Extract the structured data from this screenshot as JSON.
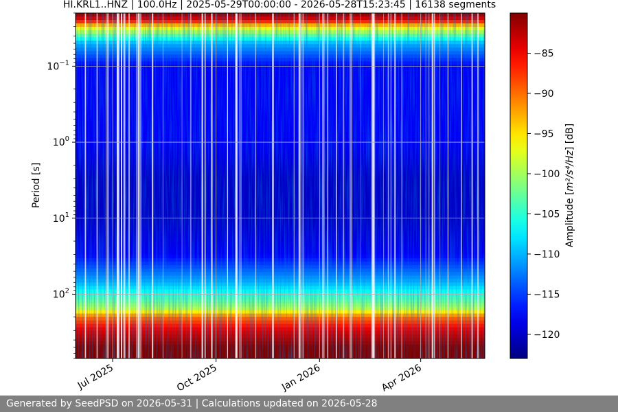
{
  "chart_data": {
    "type": "heatmap",
    "title": "HI.KRL1..HNZ | 100.0Hz | 2025-05-29T00:00:00 - 2026-05-28T15:23:45 | 16138 segments",
    "ylabel": "Period [s]",
    "y_scale": "log",
    "y_inverted": true,
    "ylim": [
      0.02,
      700
    ],
    "y_ticks": [
      {
        "value": 0.1,
        "base": "10",
        "exp": "−1"
      },
      {
        "value": 1,
        "base": "10",
        "exp": "0"
      },
      {
        "value": 10,
        "base": "10",
        "exp": "1"
      },
      {
        "value": 100,
        "base": "10",
        "exp": "2"
      }
    ],
    "x_range": [
      "2025-05-29",
      "2026-05-28"
    ],
    "x_ticks": [
      {
        "date": "2025-07-01",
        "label": "Jul 2025"
      },
      {
        "date": "2025-10-01",
        "label": "Oct 2025"
      },
      {
        "date": "2026-01-01",
        "label": "Jan 2026"
      },
      {
        "date": "2026-04-01",
        "label": "Apr 2026"
      }
    ],
    "grid": true,
    "colormap": "jet",
    "colorbar": {
      "label_prefix": "Amplitude [",
      "label_units": "m²/s⁴/Hz",
      "label_suffix": "] [dB]",
      "range": [
        -123,
        -80
      ],
      "ticks": [
        {
          "value": -85,
          "label": "−85"
        },
        {
          "value": -90,
          "label": "−90"
        },
        {
          "value": -95,
          "label": "−95"
        },
        {
          "value": -100,
          "label": "−100"
        },
        {
          "value": -105,
          "label": "−105"
        },
        {
          "value": -110,
          "label": "−110"
        },
        {
          "value": -115,
          "label": "−115"
        },
        {
          "value": -120,
          "label": "−120"
        }
      ]
    },
    "amplitude_profile": [
      {
        "period": 0.02,
        "db": -80
      },
      {
        "period": 0.025,
        "db": -85
      },
      {
        "period": 0.03,
        "db": -95
      },
      {
        "period": 0.05,
        "db": -110
      },
      {
        "period": 0.1,
        "db": -118
      },
      {
        "period": 1,
        "db": -118
      },
      {
        "period": 3,
        "db": -120
      },
      {
        "period": 10,
        "db": -120
      },
      {
        "period": 30,
        "db": -118
      },
      {
        "period": 70,
        "db": -110
      },
      {
        "period": 150,
        "db": -100
      },
      {
        "period": 200,
        "db": -90
      },
      {
        "period": 300,
        "db": -84
      },
      {
        "period": 500,
        "db": -80
      },
      {
        "period": 700,
        "db": -80
      }
    ]
  },
  "footer": {
    "text": "Generated by SeedPSD on 2026-05-31 | Calculations updated on 2026-05-28"
  }
}
